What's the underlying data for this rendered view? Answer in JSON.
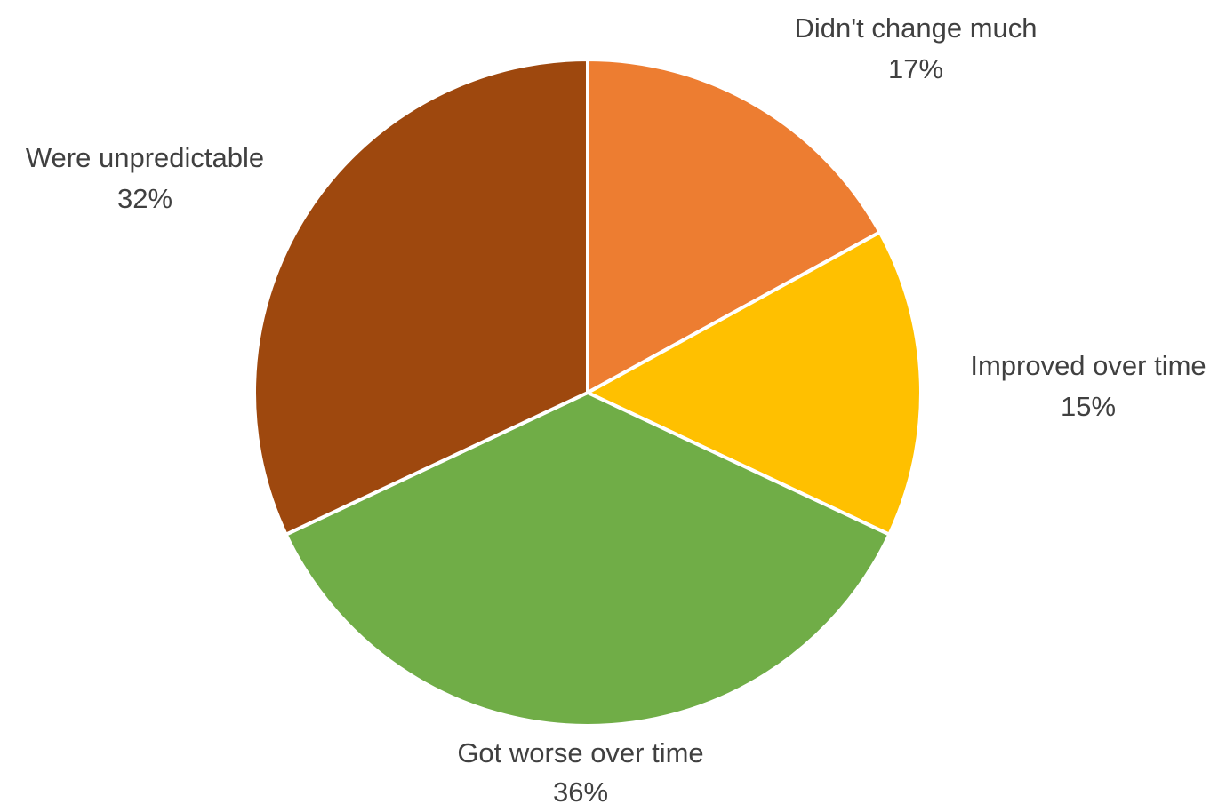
{
  "chart_data": {
    "type": "pie",
    "title": "",
    "start_angle_deg": 0,
    "direction": "clockwise",
    "slices": [
      {
        "label": "Didn't change much",
        "value": 17,
        "value_label": "17%",
        "color": "#ED7D31"
      },
      {
        "label": "Improved over time",
        "value": 15,
        "value_label": "15%",
        "color": "#FFC000"
      },
      {
        "label": "Got worse over time",
        "value": 36,
        "value_label": "36%",
        "color": "#70AD47"
      },
      {
        "label": "Were unpredictable",
        "value": 32,
        "value_label": "32%",
        "color": "#9E480E"
      }
    ],
    "legend": "none",
    "data_labels": "outside"
  }
}
